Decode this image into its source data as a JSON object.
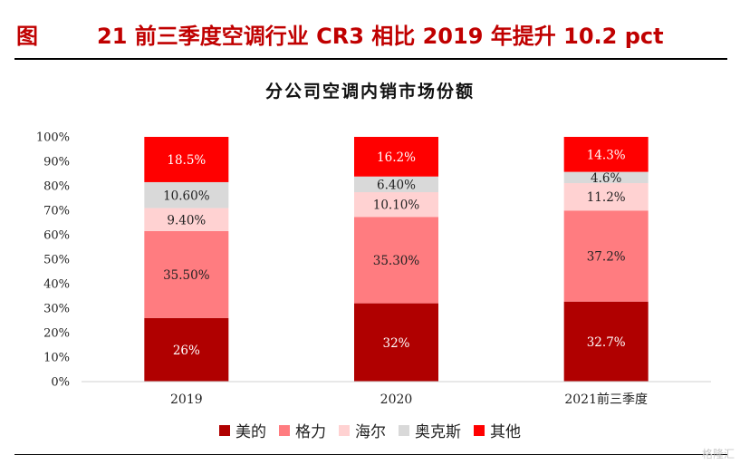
{
  "header": {
    "label": "图",
    "title": "21 前三季度空调行业 CR3 相比 2019 年提升 10.2 pct"
  },
  "watermark": "格隆汇",
  "chart_data": {
    "type": "bar",
    "stacked": true,
    "title": "分公司空调内销市场份额",
    "xlabel": "",
    "ylabel": "",
    "ylim": [
      0,
      100
    ],
    "yticks": [
      "0%",
      "10%",
      "20%",
      "30%",
      "40%",
      "50%",
      "60%",
      "70%",
      "80%",
      "90%",
      "100%"
    ],
    "categories": [
      "2019",
      "2020",
      "2021前三季度"
    ],
    "legend_position": "bottom",
    "grid": false,
    "series": [
      {
        "name": "美的",
        "color": "#b00000",
        "label_color": "#ffffff",
        "values": [
          26,
          32,
          32.7
        ],
        "labels": [
          "26%",
          "32%",
          "32.7%"
        ]
      },
      {
        "name": "格力",
        "color": "#ff7c80",
        "label_color": "#222222",
        "values": [
          35.5,
          35.3,
          37.2
        ],
        "labels": [
          "35.50%",
          "35.30%",
          "37.2%"
        ]
      },
      {
        "name": "海尔",
        "color": "#ffd2d2",
        "label_color": "#222222",
        "values": [
          9.4,
          10.1,
          11.2
        ],
        "labels": [
          "9.40%",
          "10.10%",
          "11.2%"
        ]
      },
      {
        "name": "奥克斯",
        "color": "#d9d9d9",
        "label_color": "#222222",
        "values": [
          10.6,
          6.4,
          4.6
        ],
        "labels": [
          "10.60%",
          "6.40%",
          "4.6%"
        ]
      },
      {
        "name": "其他",
        "color": "#ff0000",
        "label_color": "#ffffff",
        "values": [
          18.5,
          16.2,
          14.3
        ],
        "labels": [
          "18.5%",
          "16.2%",
          "14.3%"
        ]
      }
    ]
  }
}
